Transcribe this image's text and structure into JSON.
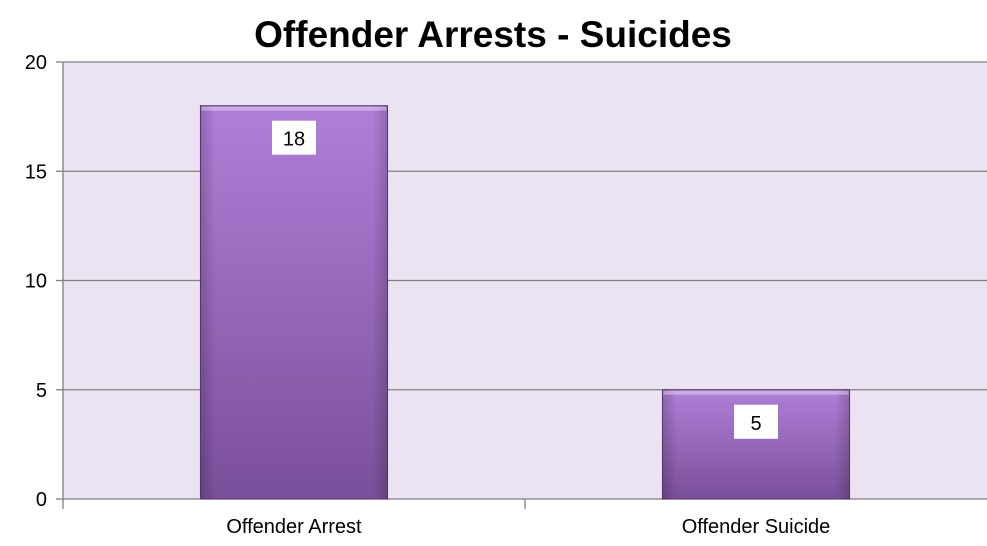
{
  "chart_data": {
    "type": "bar",
    "title": "Offender Arrests - Suicides",
    "categories": [
      "Offender Arrest",
      "Offender Suicide"
    ],
    "values": [
      18,
      5
    ],
    "data_labels": [
      "18",
      "5"
    ],
    "ylim": [
      0,
      20
    ],
    "yticks": [
      0,
      5,
      10,
      15,
      20
    ],
    "ytick_labels": [
      "0",
      "5",
      "10",
      "15",
      "20"
    ],
    "xlabel": "",
    "ylabel": "",
    "grid": true,
    "legend": "none",
    "colors": {
      "plot_background": "#ebe3f1",
      "bar_light": "#b07fd8",
      "bar_dark": "#7a4f99",
      "bar_edge": "#5a3a72",
      "gridline": "#808080",
      "axis": "#808080",
      "label_box": "#ffffff"
    }
  }
}
